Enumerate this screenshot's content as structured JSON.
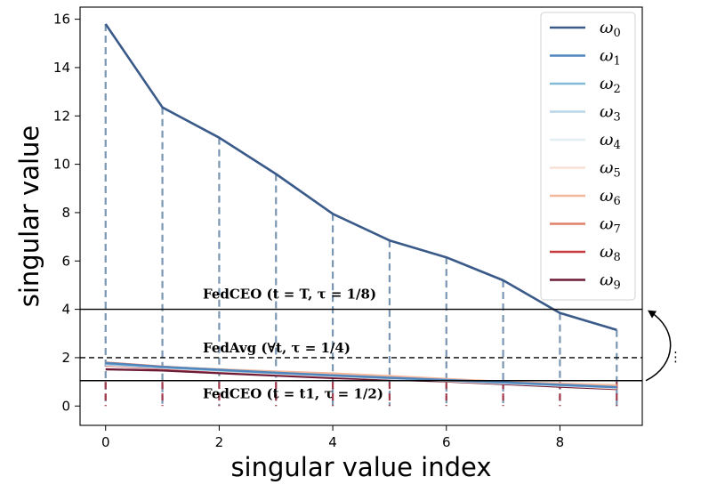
{
  "chart_data": {
    "type": "line",
    "xlabel": "singular value index",
    "ylabel": "singular value",
    "x": [
      0,
      1,
      2,
      3,
      4,
      5,
      6,
      7,
      8,
      9
    ],
    "xlim": [
      -0.45,
      9.45
    ],
    "ylim": [
      -0.8,
      16.5
    ],
    "xticks": [
      "0",
      "2",
      "4",
      "6",
      "8"
    ],
    "yticks": [
      "0",
      "2",
      "4",
      "6",
      "8",
      "10",
      "12",
      "14",
      "16"
    ],
    "grid": false,
    "legend_position": "top-right",
    "series": [
      {
        "name": "ω0",
        "color": "#3a5a8a",
        "values": [
          15.8,
          12.35,
          11.1,
          9.6,
          7.95,
          6.85,
          6.15,
          5.2,
          3.85,
          3.15
        ]
      },
      {
        "name": "ω1",
        "color": "#4f86bd",
        "values": [
          1.78,
          1.62,
          1.5,
          1.38,
          1.27,
          1.17,
          1.08,
          0.98,
          0.88,
          0.78
        ]
      },
      {
        "name": "ω2",
        "color": "#85b9d8",
        "values": [
          1.75,
          1.6,
          1.48,
          1.37,
          1.26,
          1.16,
          1.07,
          0.97,
          0.87,
          0.77
        ]
      },
      {
        "name": "ω3",
        "color": "#b8d6ea",
        "values": [
          1.73,
          1.59,
          1.47,
          1.36,
          1.25,
          1.15,
          1.06,
          0.96,
          0.86,
          0.76
        ]
      },
      {
        "name": "ω4",
        "color": "#e3edf4",
        "values": [
          1.72,
          1.58,
          1.46,
          1.35,
          1.24,
          1.14,
          1.05,
          0.95,
          0.85,
          0.75
        ]
      },
      {
        "name": "ω5",
        "color": "#f8e1d6",
        "values": [
          1.7,
          1.57,
          1.45,
          1.34,
          1.23,
          1.13,
          1.04,
          0.94,
          0.84,
          0.74
        ]
      },
      {
        "name": "ω6",
        "color": "#f4b89c",
        "values": [
          1.76,
          1.61,
          1.52,
          1.43,
          1.35,
          1.24,
          1.12,
          1.0,
          0.93,
          0.86
        ]
      },
      {
        "name": "ω7",
        "color": "#e07e66",
        "values": [
          1.8,
          1.63,
          1.5,
          1.4,
          1.3,
          1.2,
          1.1,
          1.0,
          0.9,
          0.82
        ]
      },
      {
        "name": "ω8",
        "color": "#c63b3f",
        "values": [
          1.68,
          1.55,
          1.44,
          1.33,
          1.22,
          1.14,
          1.08,
          0.96,
          0.85,
          0.72
        ]
      },
      {
        "name": "ω9",
        "color": "#6d1a36",
        "values": [
          1.52,
          1.47,
          1.36,
          1.26,
          1.16,
          1.09,
          1.02,
          0.91,
          0.8,
          0.7
        ]
      }
    ],
    "threshold_lines": [
      {
        "y": 4,
        "style": "solid",
        "label": "FedCEO (t = T, τ = 1/8)"
      },
      {
        "y": 2,
        "style": "dashed",
        "label": "FedAvg (∀t, τ = 1/4)"
      },
      {
        "y": 1.05,
        "style": "solid",
        "label": "FedCEO (t = t1, τ = 1/2)"
      }
    ],
    "side_annotation": "⋮"
  }
}
